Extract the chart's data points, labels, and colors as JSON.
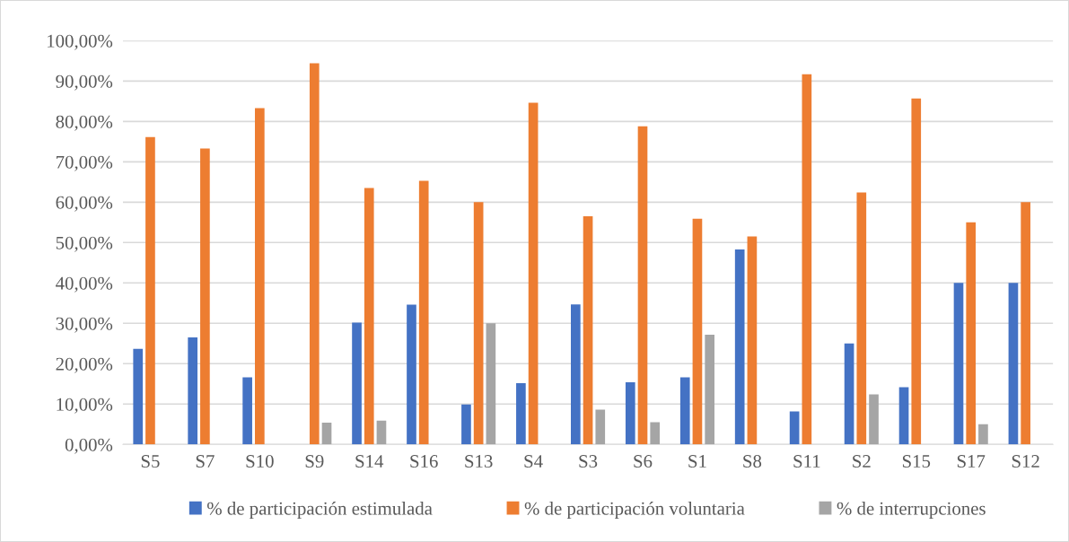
{
  "chart_data": {
    "type": "bar",
    "categories": [
      "S5",
      "S7",
      "S10",
      "S9",
      "S14",
      "S16",
      "S13",
      "S4",
      "S3",
      "S6",
      "S1",
      "S8",
      "S11",
      "S2",
      "S15",
      "S17",
      "S12"
    ],
    "series": [
      {
        "name": "% de participación estimulada",
        "color": "#4472c4",
        "values": [
          23.7,
          26.5,
          16.6,
          0,
          30.2,
          34.6,
          9.9,
          15.2,
          34.7,
          15.4,
          16.6,
          48.3,
          8.2,
          25.0,
          14.2,
          40,
          40
        ]
      },
      {
        "name": "% de participación voluntaria",
        "color": "#ed7d31",
        "values": [
          76.1,
          73.3,
          83.3,
          94.4,
          63.5,
          65.3,
          60,
          84.6,
          56.5,
          78.8,
          55.9,
          51.5,
          91.7,
          62.4,
          85.7,
          55,
          60
        ]
      },
      {
        "name": "% de interrupciones",
        "color": "#a5a5a5",
        "values": [
          0,
          0,
          0,
          5.4,
          5.9,
          0,
          30,
          0,
          8.6,
          5.5,
          27.2,
          0,
          0,
          12.4,
          0,
          5,
          0
        ]
      }
    ],
    "ylim": [
      0,
      100
    ],
    "yticks": [
      {
        "value": 0,
        "label": "0,00%"
      },
      {
        "value": 10,
        "label": "10,00%"
      },
      {
        "value": 20,
        "label": "20,00%"
      },
      {
        "value": 30,
        "label": "30,00%"
      },
      {
        "value": 40,
        "label": "40,00%"
      },
      {
        "value": 50,
        "label": "50,00%"
      },
      {
        "value": 60,
        "label": "60,00%"
      },
      {
        "value": 70,
        "label": "70,00%"
      },
      {
        "value": 80,
        "label": "80,00%"
      },
      {
        "value": 90,
        "label": "90,00%"
      },
      {
        "value": 100,
        "label": "100,00%"
      }
    ],
    "grid": "y",
    "legend": "bottom"
  }
}
